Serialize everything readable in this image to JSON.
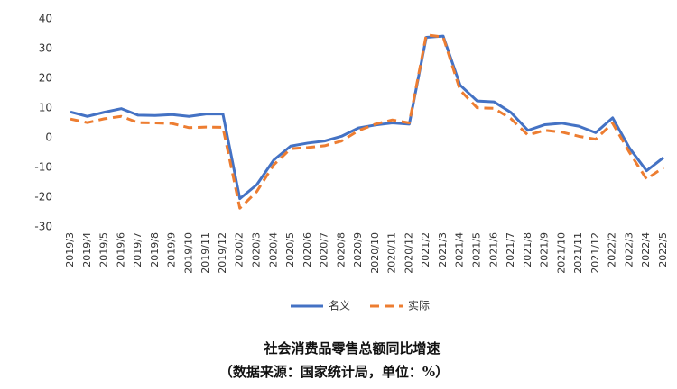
{
  "chart_data": {
    "type": "line",
    "title": "社会消费品零售总额同比增速",
    "subtitle": "（数据来源：国家统计局，单位：%）",
    "categories": [
      "2019/3",
      "2019/4",
      "2019/5",
      "2019/6",
      "2019/7",
      "2019/8",
      "2019/9",
      "2019/10",
      "2019/11",
      "2019/12",
      "2020/2",
      "2020/3",
      "2020/4",
      "2020/5",
      "2020/6",
      "2020/7",
      "2020/8",
      "2020/9",
      "2020/10",
      "2020/11",
      "2020/12",
      "2021/2",
      "2021/3",
      "2021/4",
      "2021/5",
      "2021/6",
      "2021/7",
      "2021/8",
      "2021/9",
      "2021/10",
      "2021/11",
      "2021/12",
      "2022/2",
      "2022/3",
      "2022/4",
      "2022/5"
    ],
    "series": [
      {
        "name": "名义",
        "color": "#4472c4",
        "dash": false,
        "values": [
          8.7,
          7.2,
          8.6,
          9.8,
          7.6,
          7.5,
          7.8,
          7.2,
          8.0,
          8.0,
          -20.5,
          -15.8,
          -7.5,
          -2.8,
          -1.8,
          -1.1,
          0.5,
          3.3,
          4.3,
          5.0,
          4.6,
          33.8,
          34.2,
          17.7,
          12.4,
          12.1,
          8.5,
          2.5,
          4.4,
          4.9,
          3.9,
          1.7,
          6.7,
          -3.5,
          -11.1,
          -6.7
        ]
      },
      {
        "name": "实际",
        "color": "#ed7d31",
        "dash": true,
        "values": [
          6.3,
          5.1,
          6.4,
          7.2,
          5.1,
          5.0,
          4.8,
          3.4,
          3.6,
          3.5,
          -23.7,
          -18.1,
          -9.1,
          -3.7,
          -3.3,
          -2.7,
          -1.1,
          2.4,
          4.6,
          6.0,
          5.0,
          34.6,
          33.9,
          16.0,
          10.1,
          9.9,
          6.4,
          0.9,
          2.5,
          1.9,
          0.5,
          -0.5,
          4.9,
          -5.0,
          -13.9,
          -10.0
        ]
      }
    ],
    "ylim": [
      -30,
      40
    ],
    "yticks": [
      -30,
      -20,
      -10,
      0,
      10,
      20,
      30,
      40
    ],
    "grid": false
  }
}
